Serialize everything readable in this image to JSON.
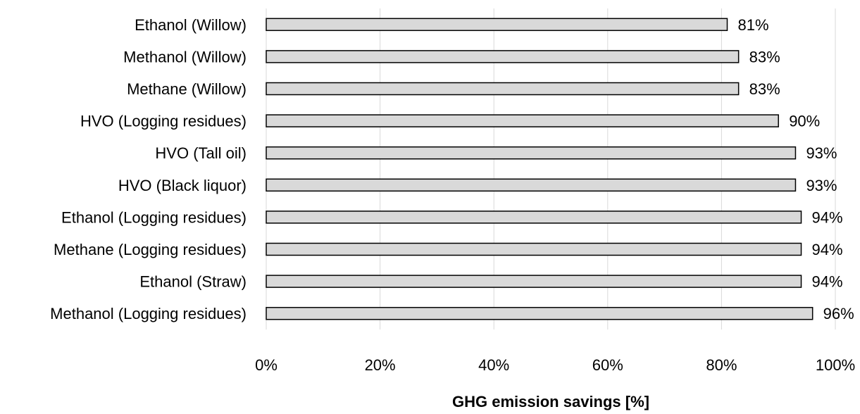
{
  "chart_data": {
    "type": "bar",
    "orientation": "horizontal",
    "categories": [
      "Ethanol (Willow)",
      "Methanol (Willow)",
      "Methane (Willow)",
      "HVO (Logging residues)",
      "HVO (Tall oil)",
      "HVO (Black liquor)",
      "Ethanol (Logging residues)",
      "Methane (Logging residues)",
      "Ethanol (Straw)",
      "Methanol (Logging residues)"
    ],
    "values": [
      81,
      83,
      83,
      90,
      93,
      93,
      94,
      94,
      94,
      96
    ],
    "value_labels": [
      "81%",
      "83%",
      "83%",
      "90%",
      "93%",
      "93%",
      "94%",
      "94%",
      "94%",
      "96%"
    ],
    "xlabel": "GHG emission savings [%]",
    "ylabel": "",
    "title": "",
    "xlim": [
      0,
      100
    ],
    "x_ticks": [
      0,
      20,
      40,
      60,
      80,
      100
    ],
    "x_tick_labels": [
      "0%",
      "20%",
      "40%",
      "60%",
      "80%",
      "100%"
    ],
    "grid": "vertical",
    "legend": "none",
    "colors": {
      "bar_fill": "#d9d9d9",
      "bar_stroke": "#000000",
      "grid": "#d9d9d9"
    }
  }
}
